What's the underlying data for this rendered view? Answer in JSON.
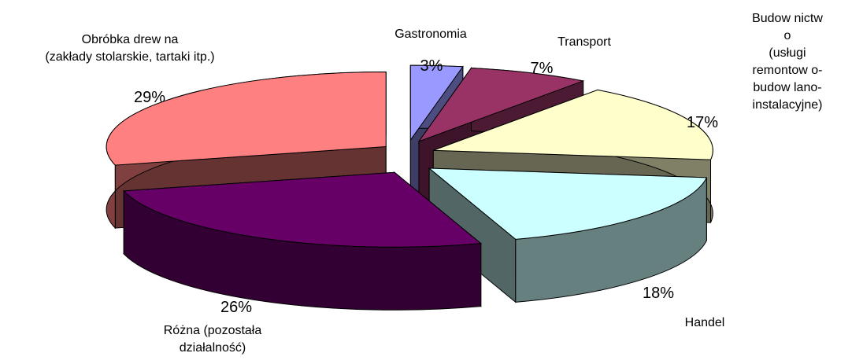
{
  "chart_data": {
    "type": "pie3d",
    "categories": [
      "Gastronomia",
      "Transport",
      "Budow nictw o\n(usługi remontow o-\nbudow lano-\ninstalacyjne)",
      "Handel",
      "Różna (pozostała\ndziałalność)",
      "Obróbka drew na\n(zakłady stolarskie, tartaki itp.)"
    ],
    "values": [
      3,
      7,
      17,
      18,
      26,
      29
    ],
    "value_labels": [
      "3%",
      "7%",
      "17%",
      "18%",
      "26%",
      "29%"
    ],
    "colors": [
      "#9999ff",
      "#993366",
      "#ffffcc",
      "#ccffff",
      "#660066",
      "#ff8080"
    ]
  }
}
